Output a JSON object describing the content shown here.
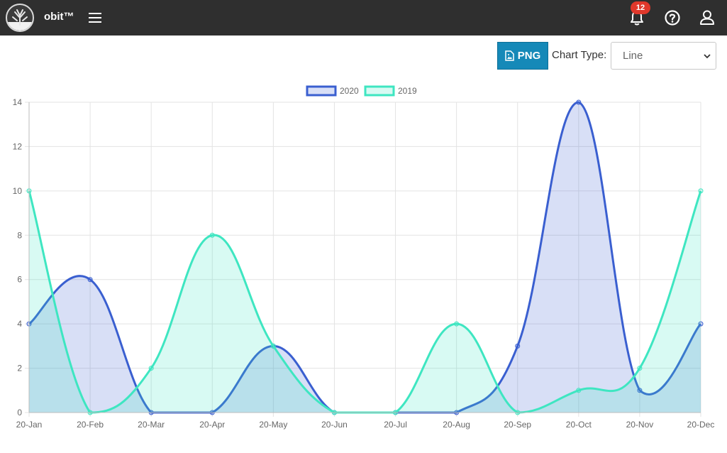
{
  "app": {
    "brand": "obit™",
    "notifications_count": "12",
    "icons": [
      "tree-logo-icon",
      "menu-icon",
      "bell-icon",
      "help-icon",
      "user-icon"
    ]
  },
  "toolbar": {
    "png_label": "PNG",
    "chart_type_label": "Chart Type:",
    "chart_type_value": "Line"
  },
  "colors": {
    "topbar": "#2f2f2f",
    "accent_button": "#1589b8",
    "series_2020": "#3a5fd0",
    "series_2019": "#3ee6c1"
  },
  "chart_data": {
    "type": "area",
    "categories": [
      "20-Jan",
      "20-Feb",
      "20-Mar",
      "20-Apr",
      "20-May",
      "20-Jun",
      "20-Jul",
      "20-Aug",
      "20-Sep",
      "20-Oct",
      "20-Nov",
      "20-Dec"
    ],
    "series": [
      {
        "name": "2020",
        "values": [
          4,
          6,
          0,
          0,
          3,
          0,
          0,
          0,
          3,
          14,
          1,
          4
        ]
      },
      {
        "name": "2019",
        "values": [
          10,
          0,
          2,
          8,
          3,
          0,
          0,
          4,
          0,
          1,
          2,
          10
        ]
      }
    ],
    "ylim": [
      0,
      14
    ],
    "yticks": [
      0,
      2,
      4,
      6,
      8,
      10,
      12,
      14
    ],
    "grid": true,
    "legend": "top-center",
    "smooth": true
  }
}
